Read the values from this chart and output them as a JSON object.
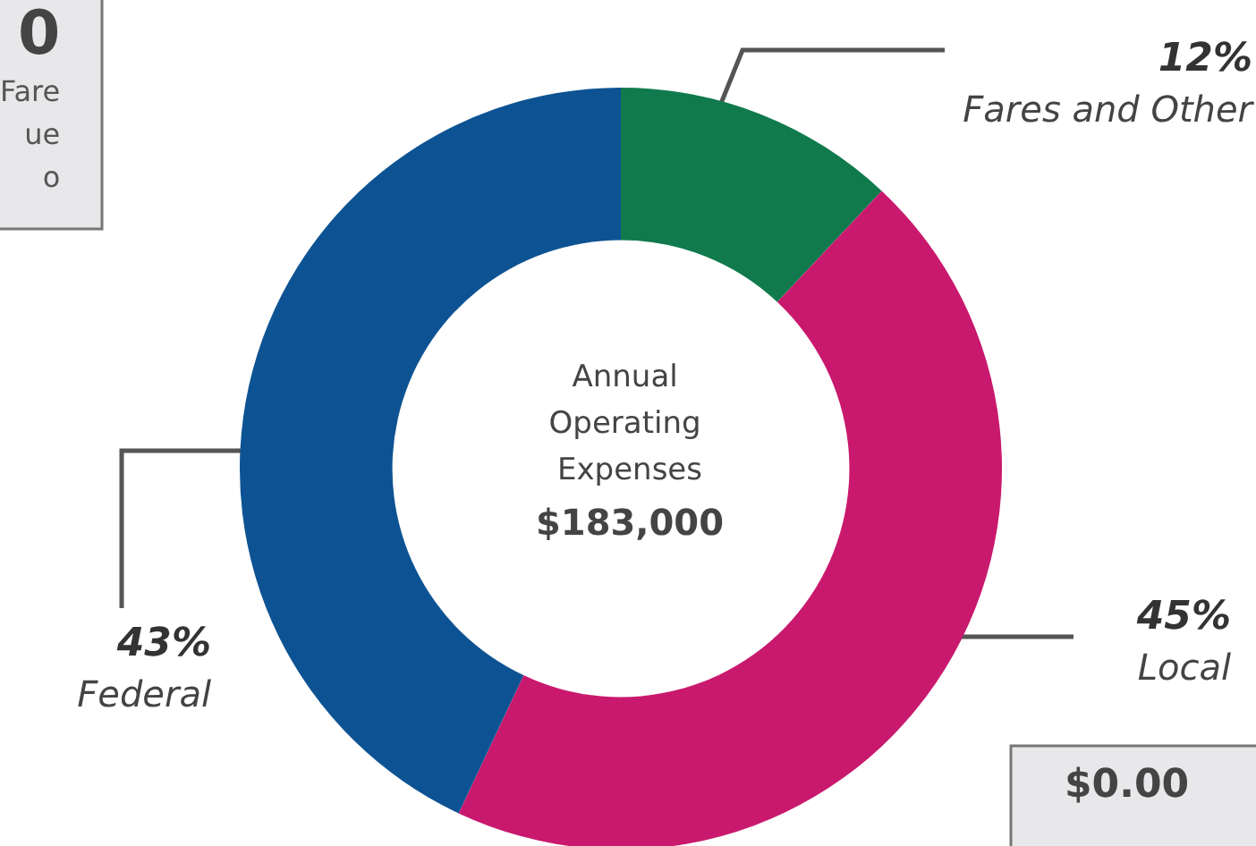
{
  "chart_data": {
    "type": "donut",
    "title": "Annual Operating Expenses",
    "subtitle": "$183,000",
    "categories": [
      "Fares and Other",
      "Local",
      "Federal"
    ],
    "values": [
      12,
      45,
      43
    ],
    "colors": [
      "#107a4d",
      "#c9196e",
      "#0d5393"
    ],
    "value_labels": [
      "12%",
      "45%",
      "43%"
    ],
    "legend": false,
    "annotations": [
      "0\nFare\nue\no",
      "$0.00"
    ]
  }
}
